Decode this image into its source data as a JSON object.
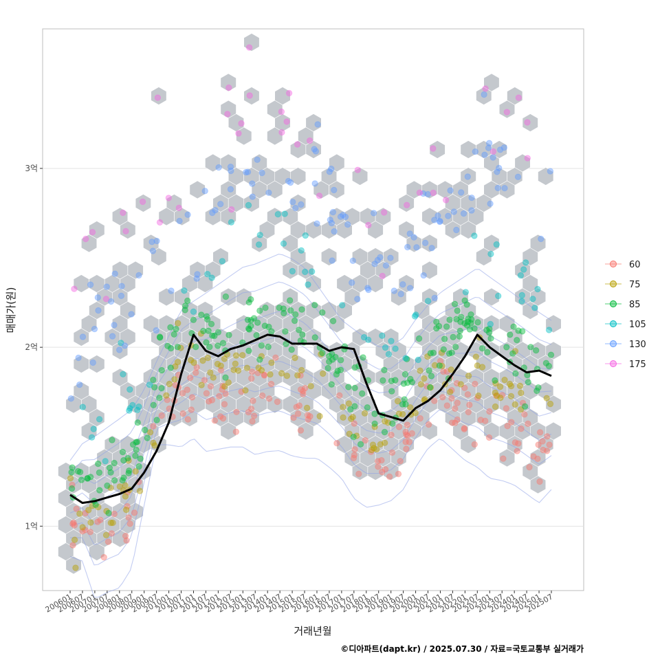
{
  "chart_data": {
    "type": "scatter",
    "xlabel": "거래년월",
    "ylabel": "매매가(원)",
    "caption": "©디아파트(dapt.kr) / 2025.07.30 / 자료=국토교통부 실거래가",
    "x_ticks": [
      "200601",
      "200607",
      "200701",
      "200707",
      "200801",
      "200807",
      "200901",
      "200907",
      "201001",
      "201007",
      "201101",
      "201107",
      "201201",
      "201207",
      "201301",
      "201307",
      "201401",
      "201407",
      "201501",
      "201507",
      "201601",
      "201607",
      "201701",
      "201707",
      "201801",
      "201807",
      "201901",
      "201907",
      "202001",
      "202007",
      "202101",
      "202107",
      "202201",
      "202207",
      "202301",
      "202307",
      "202401",
      "202407",
      "202501",
      "202507"
    ],
    "y_ticks": [
      {
        "value": 100000000,
        "label": "1억"
      },
      {
        "value": 200000000,
        "label": "2억"
      },
      {
        "value": 300000000,
        "label": "3억"
      }
    ],
    "ylim": [
      64000000,
      378000000
    ],
    "grid": true,
    "legend": {
      "position": "right",
      "entries": [
        {
          "name": "60",
          "color": "#F8766D"
        },
        {
          "name": "75",
          "color": "#B79F00"
        },
        {
          "name": "85",
          "color": "#00BA38"
        },
        {
          "name": "105",
          "color": "#00BFC4"
        },
        {
          "name": "130",
          "color": "#619CFF"
        },
        {
          "name": "175",
          "color": "#F564E3"
        }
      ]
    },
    "trend_line": {
      "color": "#000000",
      "x": [
        "200601",
        "200607",
        "200701",
        "200707",
        "200801",
        "200807",
        "200901",
        "200907",
        "201001",
        "201007",
        "201101",
        "201107",
        "201201",
        "201207",
        "201301",
        "201307",
        "201401",
        "201407",
        "201501",
        "201507",
        "201601",
        "201607",
        "201701",
        "201707",
        "201801",
        "201807",
        "201901",
        "201907",
        "202001",
        "202007",
        "202101",
        "202107",
        "202201",
        "202207",
        "202301",
        "202307",
        "202401",
        "202407",
        "202501",
        "202507"
      ],
      "values": [
        117500000,
        113000000,
        114000000,
        116000000,
        118000000,
        121000000,
        130000000,
        142000000,
        158000000,
        185000000,
        207000000,
        198000000,
        195000000,
        199000000,
        201000000,
        204000000,
        207000000,
        206000000,
        202000000,
        202000000,
        202000000,
        198000000,
        200000000,
        199000000,
        180000000,
        163000000,
        161000000,
        159000000,
        166000000,
        170000000,
        176000000,
        185000000,
        195000000,
        207000000,
        200000000,
        195000000,
        190000000,
        186000000,
        187000000,
        184000000
      ]
    },
    "series": [
      {
        "name": "60",
        "center": [
          104000000,
          104000000,
          88000000,
          92000000,
          95000000,
          105000000,
          135000000,
          165000000,
          168000000,
          170000000,
          175000000,
          170000000,
          172000000,
          174000000,
          175000000,
          172000000,
          174000000,
          175000000,
          172000000,
          170000000,
          168000000,
          162000000,
          155000000,
          145000000,
          140000000,
          140000000,
          142000000,
          148000000,
          160000000,
          170000000,
          176000000,
          172000000,
          168000000,
          166000000,
          160000000,
          158000000,
          155000000,
          150000000,
          145000000,
          150000000
        ],
        "spread": 9000000
      },
      {
        "name": "75",
        "center": [
          105000000,
          104000000,
          106000000,
          108000000,
          113000000,
          120000000,
          135000000,
          160000000,
          185000000,
          195000000,
          192000000,
          188000000,
          186000000,
          188000000,
          190000000,
          189000000,
          188000000,
          187000000,
          186000000,
          186000000,
          184000000,
          175000000,
          165000000,
          155000000,
          152000000,
          153000000,
          155000000,
          160000000,
          168000000,
          178000000,
          188000000,
          190000000,
          187000000,
          184000000,
          180000000,
          178000000,
          175000000,
          172000000,
          170000000,
          170000000
        ],
        "spread": 8000000
      },
      {
        "name": "85",
        "center": [
          120000000,
          122000000,
          124000000,
          125000000,
          128000000,
          135000000,
          150000000,
          175000000,
          200000000,
          215000000,
          212000000,
          208000000,
          206000000,
          208000000,
          210000000,
          211000000,
          212000000,
          211000000,
          208000000,
          208000000,
          206000000,
          200000000,
          188000000,
          178000000,
          172000000,
          168000000,
          168000000,
          172000000,
          180000000,
          190000000,
          200000000,
          210000000,
          212000000,
          210000000,
          205000000,
          200000000,
          196000000,
          192000000,
          190000000,
          190000000
        ],
        "spread": 10000000
      },
      {
        "name": "105",
        "center": [
          140000000,
          150000000,
          155000000,
          160000000,
          165000000,
          170000000,
          180000000,
          195000000,
          210000000,
          225000000,
          230000000,
          235000000,
          240000000,
          245000000,
          250000000,
          252000000,
          255000000,
          258000000,
          255000000,
          250000000,
          240000000,
          230000000,
          220000000,
          215000000,
          210000000,
          205000000,
          205000000,
          210000000,
          220000000,
          228000000,
          235000000,
          240000000,
          245000000,
          250000000,
          245000000,
          240000000,
          235000000,
          230000000,
          225000000,
          220000000
        ],
        "spread": 12000000
      },
      {
        "name": "130",
        "center": [
          200000000,
          205000000,
          210000000,
          215000000,
          220000000,
          225000000,
          230000000,
          235000000,
          240000000,
          250000000,
          260000000,
          268000000,
          275000000,
          280000000,
          285000000,
          290000000,
          295000000,
          298000000,
          295000000,
          290000000,
          285000000,
          280000000,
          270000000,
          262000000,
          255000000,
          250000000,
          245000000,
          248000000,
          255000000,
          262000000,
          270000000,
          280000000,
          290000000,
          300000000,
          305000000,
          300000000,
          295000000,
          290000000,
          285000000,
          280000000
        ],
        "spread": 16000000
      },
      {
        "name": "175",
        "center": [
          250000000,
          255000000,
          258000000,
          262000000,
          265000000,
          268000000,
          272000000,
          276000000,
          280000000,
          288000000,
          296000000,
          304000000,
          310000000,
          316000000,
          320000000,
          325000000,
          330000000,
          335000000,
          330000000,
          325000000,
          318000000,
          310000000,
          300000000,
          290000000,
          282000000,
          275000000,
          270000000,
          272000000,
          280000000,
          290000000,
          300000000,
          310000000,
          320000000,
          330000000,
          335000000,
          330000000,
          325000000,
          318000000,
          312000000,
          305000000
        ],
        "spread": 20000000
      }
    ]
  }
}
